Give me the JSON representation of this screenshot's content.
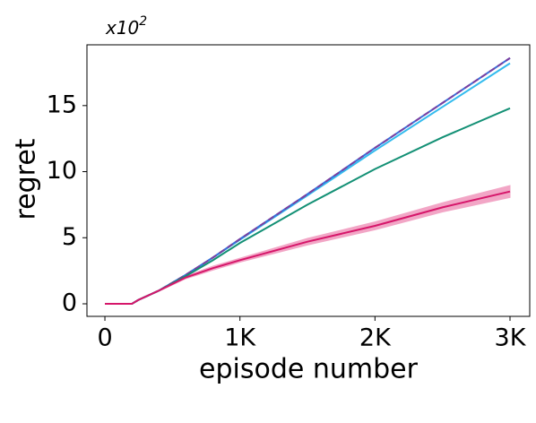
{
  "chart_data": {
    "type": "line",
    "xlabel": "episode number",
    "ylabel": "regret",
    "y_multiplier": "x10",
    "y_multiplier_exponent": "2",
    "x": [
      0,
      200,
      250,
      400,
      600,
      800,
      1000,
      1500,
      2000,
      2500,
      3000
    ],
    "series": [
      {
        "color": "#33bbee",
        "values": [
          0,
          0,
          0.3,
          1.0,
          2.2,
          3.5,
          4.85,
          8.2,
          11.6,
          14.9,
          18.2
        ]
      },
      {
        "color": "#3a6fd8",
        "values": [
          0,
          0,
          0.3,
          1.0,
          2.2,
          3.5,
          4.9,
          8.3,
          11.8,
          15.2,
          18.6
        ]
      },
      {
        "color": "#7b3fa0",
        "dashed": true,
        "values": [
          0,
          0,
          0.3,
          1.0,
          2.2,
          3.5,
          4.9,
          8.3,
          11.8,
          15.2,
          18.6
        ]
      },
      {
        "color": "#139075",
        "values": [
          0,
          0,
          0.3,
          1.0,
          2.1,
          3.3,
          4.6,
          7.5,
          10.2,
          12.6,
          14.8
        ]
      },
      {
        "color": "#d6166a",
        "band_color": "#f2a6c6",
        "values": [
          0,
          0,
          0.3,
          1.0,
          2.0,
          2.7,
          3.3,
          4.7,
          5.9,
          7.3,
          8.5
        ],
        "lower": [
          0,
          0,
          0.28,
          0.95,
          1.9,
          2.55,
          3.15,
          4.45,
          5.6,
          6.95,
          8.05
        ],
        "upper": [
          0,
          0,
          0.32,
          1.05,
          2.1,
          2.85,
          3.45,
          4.95,
          6.2,
          7.65,
          8.95
        ]
      }
    ],
    "xlim": [
      -133,
      3146
    ],
    "ylim": [
      -0.95,
      19.6
    ],
    "xticks": [
      0,
      {
        "value": 1000,
        "label": "1K"
      },
      {
        "value": 2000,
        "label": "2K"
      },
      {
        "value": 3000,
        "label": "3K"
      }
    ],
    "yticks": [
      0,
      5,
      10,
      15
    ]
  }
}
